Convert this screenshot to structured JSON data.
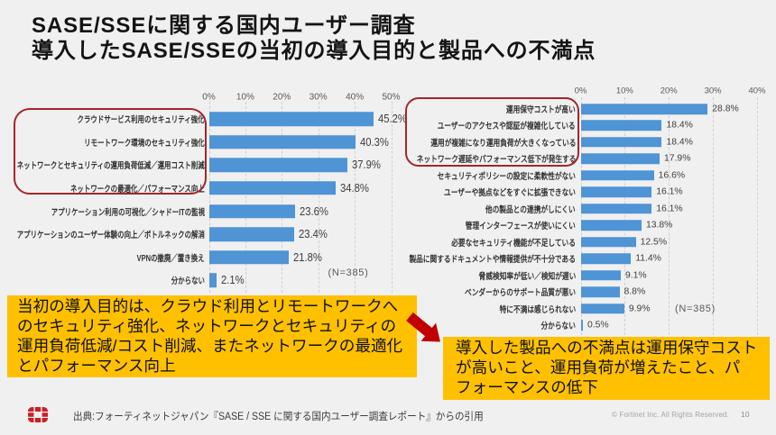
{
  "slide": {
    "title_line1": "SASE/SSEに関する国内ユーザー調査",
    "title_line2": "導入したSASE/SSEの当初の導入目的と製品への不満点",
    "source_note": "出典:フォーティネットジャパン『SASE / SSE に関する国内ユーザー調査レポート』からの引用",
    "copyright": "© Fortinet Inc. All Rights Reserved.",
    "page_number": "10",
    "background_color": "#f0f0f0"
  },
  "callouts": {
    "left_text": "当初の導入目的は、クラウド利用とリモートワークへ\nのセキュリティ強化、ネットワークとセキュリティの\n運用負荷低減/コスト削減、またネットワークの最適化\nとパフォーマンス向上",
    "right_text": "導入した製品への不満点は運用保守コスト\nが高いこと、運用負荷が増えたこと、パ\nフォーマンスの低下",
    "box_color": "#ffc000",
    "arrow_color": "#c00000"
  },
  "highlights": {
    "border_color": "#a5262c",
    "left_circled_categories": 4,
    "right_circled_categories": 4
  },
  "chart_data": [
    {
      "type": "bar",
      "orientation": "horizontal",
      "title": "導入したSASE/SSEの当初の導入目的",
      "categories": [
        "クラウドサービス利用のセキュリティ強化",
        "リモートワーク環境のセキュリティ強化",
        "ネットワークとセキュリティの運用負荷低減／運用コスト削減",
        "ネットワークの最適化／パフォーマンス向上",
        "アプリケーション利用の可視化／シャドーITの監視",
        "アプリケーションのユーザー体験の向上／ボトルネックの解消",
        "VPNの撤廃／置き換え",
        "分からない"
      ],
      "values": [
        45.2,
        40.3,
        37.9,
        34.8,
        23.6,
        23.4,
        21.8,
        2.1
      ],
      "value_labels": [
        "45.2%",
        "40.3%",
        "37.9%",
        "34.8%",
        "23.6%",
        "23.4%",
        "21.8%",
        "2.1%"
      ],
      "x_ticks": [
        "0%",
        "10%",
        "20%",
        "30%",
        "40%",
        "50%"
      ],
      "xlim": [
        0,
        50
      ],
      "n_label": "(N=385)",
      "bar_color": "#4f94d4",
      "grid": true,
      "legend": false
    },
    {
      "type": "bar",
      "orientation": "horizontal",
      "title": "導入したSASE/SSE製品への不満点",
      "categories": [
        "運用保守コストが高い",
        "ユーザーのアクセスや認証が複雑化している",
        "運用が複雑になり運用負荷が大きくなっている",
        "ネットワーク遅延やパフォーマンス低下が発生する",
        "セキュリティポリシーの設定に柔軟性がない",
        "ユーザーや拠点などをすぐに拡張できない",
        "他の製品との連携がしにくい",
        "管理インターフェースが使いにくい",
        "必要なセキュリティ機能が不足している",
        "製品に関するドキュメントや情報提供が不十分である",
        "脅威検知率が低い／検知が遅い",
        "ベンダーからのサポート品質が悪い",
        "特に不満は感じられない",
        "分からない"
      ],
      "values": [
        28.8,
        18.4,
        18.4,
        17.9,
        16.6,
        16.1,
        16.1,
        13.8,
        12.5,
        11.4,
        9.1,
        8.8,
        9.9,
        0.5
      ],
      "value_labels": [
        "28.8%",
        "18.4%",
        "18.4%",
        "17.9%",
        "16.6%",
        "16.1%",
        "16.1%",
        "13.8%",
        "12.5%",
        "11.4%",
        "9.1%",
        "8.8%",
        "9.9%",
        "0.5%"
      ],
      "x_ticks": [
        "0%",
        "10%",
        "20%",
        "30%",
        "40%"
      ],
      "xlim": [
        0,
        40
      ],
      "n_label": "(N=385)",
      "bar_color": "#4f94d4",
      "grid": true,
      "legend": false
    }
  ]
}
